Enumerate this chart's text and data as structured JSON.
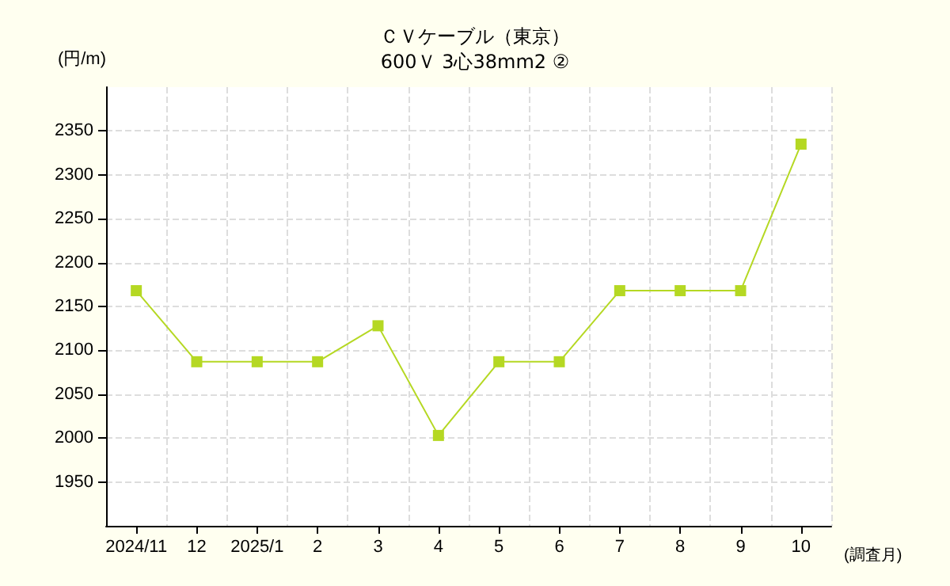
{
  "chart_data": {
    "type": "line",
    "title": "ＣＶケーブル（東京）",
    "subtitle": "600Ｖ 3心38mm2 ②",
    "xlabel": "(調査月)",
    "ylabel": "(円/m)",
    "categories": [
      "2024/11",
      "12",
      "2025/1",
      "2",
      "3",
      "4",
      "5",
      "6",
      "7",
      "8",
      "9",
      "10"
    ],
    "series": [
      {
        "color": "#b5d823",
        "values": [
          2168,
          2087,
          2087,
          2087,
          2128,
          2003,
          2087,
          2087,
          2168,
          2168,
          2168,
          2335
        ]
      }
    ],
    "ylim": [
      1900,
      2400
    ],
    "yticks": [
      1950,
      2000,
      2050,
      2100,
      2150,
      2200,
      2250,
      2300,
      2350
    ],
    "grid": true,
    "marker": "square"
  }
}
